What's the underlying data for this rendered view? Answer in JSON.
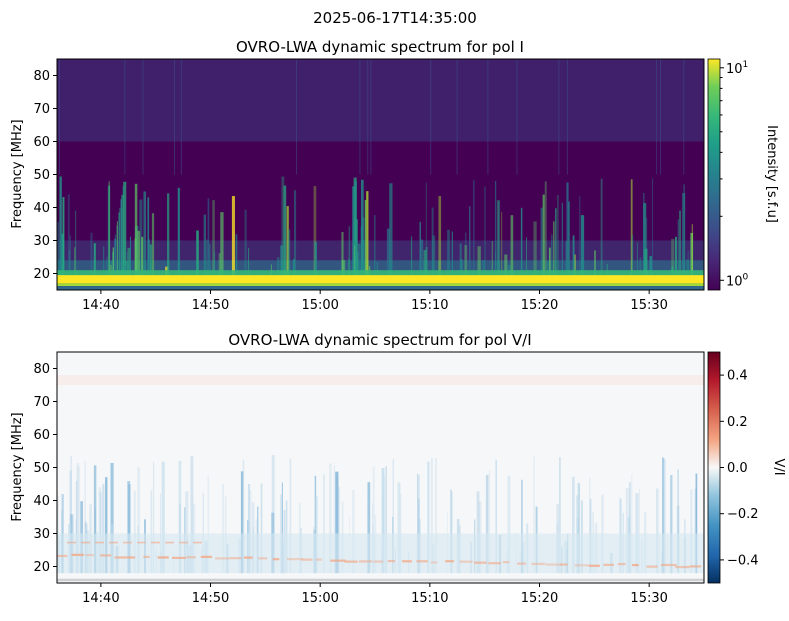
{
  "suptitle": "2025-06-17T14:35:00",
  "chart_data": [
    {
      "type": "heatmap",
      "title": "OVRO-LWA dynamic spectrum for pol I",
      "ylabel": "Frequency [MHz]",
      "xlabel": "",
      "x_range": [
        "14:36",
        "15:35"
      ],
      "x_ticks": [
        "14:40",
        "14:50",
        "15:00",
        "15:10",
        "15:20",
        "15:30"
      ],
      "ylim": [
        15,
        85
      ],
      "y_ticks": [
        20,
        30,
        40,
        50,
        60,
        70,
        80
      ],
      "colormap": "viridis",
      "colorbar": {
        "label": "Intensity [s.f.u]",
        "scale": "log",
        "range": [
          0.9,
          11
        ],
        "ticks": [
          {
            "value": 1,
            "base": "10",
            "exp": "0"
          },
          {
            "value": 10,
            "base": "10",
            "exp": "1"
          }
        ]
      },
      "features": [
        {
          "description": "bright persistent band",
          "freq_range_mhz": [
            16,
            19
          ]
        },
        {
          "description": "type III-like bursts",
          "freq_range_mhz": [
            19,
            50
          ]
        }
      ]
    },
    {
      "type": "heatmap",
      "title": "OVRO-LWA dynamic spectrum for pol V/I",
      "ylabel": "Frequency [MHz]",
      "xlabel": "",
      "x_range": [
        "14:36",
        "15:35"
      ],
      "x_ticks": [
        "14:40",
        "14:50",
        "15:00",
        "15:10",
        "15:20",
        "15:30"
      ],
      "ylim": [
        15,
        85
      ],
      "y_ticks": [
        20,
        30,
        40,
        50,
        60,
        70,
        80
      ],
      "colormap": "RdBu_r",
      "colorbar": {
        "label": "V/I",
        "scale": "linear",
        "range": [
          -0.5,
          0.5
        ],
        "ticks": [
          {
            "value": 0.4,
            "label": "0.4"
          },
          {
            "value": 0.2,
            "label": "0.2"
          },
          {
            "value": 0.0,
            "label": "0.0"
          },
          {
            "value": -0.2,
            "label": "−0.2"
          },
          {
            "value": -0.4,
            "label": "−0.4"
          }
        ]
      }
    }
  ]
}
